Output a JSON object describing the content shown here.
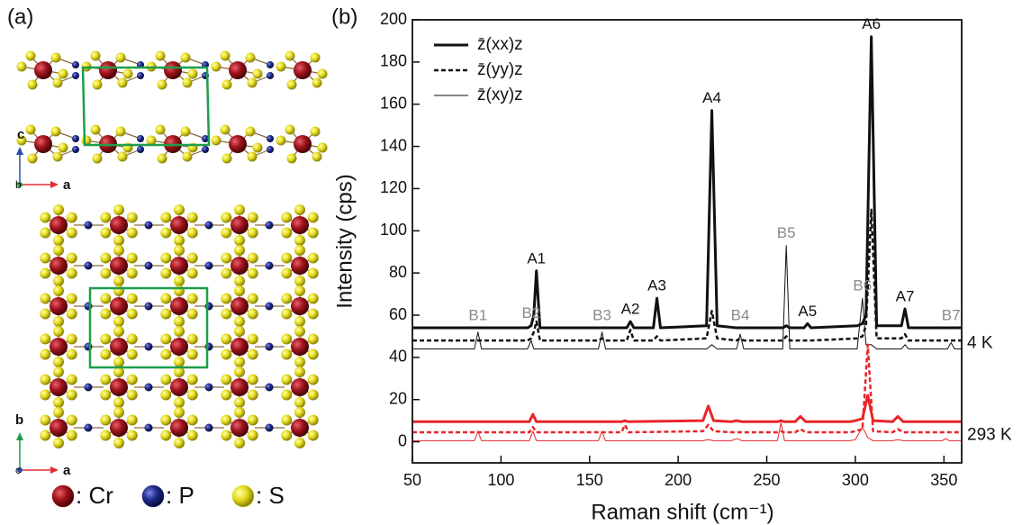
{
  "panel_a": {
    "label": "(a)",
    "side_axes": {
      "up": "c",
      "origin": "b",
      "right": "a"
    },
    "top_axes": {
      "up": "b",
      "origin": "c",
      "right": "a"
    },
    "legend": [
      {
        "text": ": Cr",
        "color": "#a0141c"
      },
      {
        "text": ": P",
        "color": "#1f2a8c"
      },
      {
        "text": ": S",
        "color": "#e6dc1e"
      }
    ]
  },
  "chart_data": {
    "type": "line",
    "panel_label": "(b)",
    "xlabel": "Raman shift (cm⁻¹)",
    "ylabel": "Intensity (cps)",
    "xlim": [
      50,
      360
    ],
    "xticks": [
      50,
      100,
      150,
      200,
      250,
      300,
      350
    ],
    "ylim": [
      -10,
      200
    ],
    "yticks": [
      0,
      20,
      40,
      60,
      80,
      100,
      120,
      140,
      160,
      180,
      200
    ],
    "grid": false,
    "legend": "upper left",
    "groups": [
      {
        "label": "4 K",
        "color": "#111111",
        "x": [
          50,
          85,
          87,
          89,
          115,
          117,
          118.5,
          120,
          122,
          155,
          157,
          159,
          171,
          173,
          175,
          186,
          188,
          190,
          216,
          219,
          222,
          233,
          235,
          237,
          259,
          261,
          263,
          271,
          273,
          275,
          301,
          304,
          306,
          309,
          312,
          326,
          328,
          330,
          352,
          354,
          356,
          360
        ],
        "series": [
          {
            "name": "z̄(xx)z",
            "style": "thick",
            "values": [
              54,
              54,
              54,
              54,
              54,
              55,
              60,
              81,
              54,
              54,
              54,
              54,
              54,
              57,
              54,
              54,
              68,
              54,
              55,
              157,
              55,
              54,
              54,
              54,
              54,
              55,
              54,
              54,
              56,
              54,
              55,
              56,
              60,
              192,
              55,
              55,
              63,
              54,
              54,
              54,
              54,
              54
            ]
          },
          {
            "name": "z̄(yy)z",
            "style": "dashed",
            "values": [
              48,
              48,
              48,
              48,
              48,
              49,
              52,
              57,
              48,
              48,
              49,
              48,
              48,
              53,
              48,
              48,
              50,
              48,
              49,
              62,
              49,
              48,
              49,
              48,
              48,
              50,
              48,
              48,
              48,
              48,
              49,
              50,
              55,
              110,
              49,
              49,
              51,
              48,
              48,
              48,
              48,
              48
            ]
          },
          {
            "name": "z̄(xy)z",
            "style": "thin",
            "values": [
              44,
              44,
              52,
              44,
              44,
              48,
              44,
              44,
              44,
              44,
              52,
              44,
              44,
              44,
              44,
              44,
              44,
              44,
              44,
              46,
              44,
              44,
              51,
              44,
              44,
              93,
              44,
              44,
              44,
              44,
              44,
              68,
              46,
              46,
              44,
              44,
              46,
              44,
              44,
              47,
              44,
              44
            ]
          }
        ]
      },
      {
        "label": "293 K",
        "color": "#e8262a",
        "x": [
          50,
          85,
          87,
          89,
          116,
          118,
          120,
          155,
          157,
          159,
          168,
          170,
          172,
          214,
          217,
          220,
          230,
          233,
          236,
          256,
          258,
          260,
          266,
          269,
          272,
          297,
          300,
          304,
          307,
          310,
          321,
          324,
          327,
          349,
          351,
          353,
          360
        ],
        "series": [
          {
            "style": "thick",
            "values": [
              9.5,
              9.5,
              9.5,
              9.5,
              9.5,
              13,
              9.5,
              9.5,
              9.5,
              9.5,
              9.5,
              10,
              9.5,
              10,
              17,
              10,
              9.5,
              10,
              9.5,
              9.5,
              10,
              9.5,
              9.5,
              12,
              9.5,
              9.5,
              10,
              11,
              22,
              10,
              9.5,
              12,
              9.5,
              9.5,
              9.5,
              9.5,
              9.5
            ]
          },
          {
            "style": "dashed",
            "values": [
              4.5,
              4.5,
              4.5,
              4.5,
              4.5,
              7,
              4.5,
              4.5,
              4.5,
              4.5,
              4.5,
              8,
              4.5,
              5,
              8,
              5,
              4.5,
              4.5,
              4.5,
              4.5,
              5,
              4.5,
              4.5,
              6,
              4.5,
              4.5,
              5,
              6,
              46,
              5,
              4.5,
              6,
              4.5,
              4.5,
              4.5,
              4.5,
              4.5
            ]
          },
          {
            "style": "thin",
            "values": [
              0.5,
              0.5,
              5,
              0.5,
              0.5,
              5,
              0.5,
              0.5,
              5,
              0.5,
              0.5,
              0.5,
              0.5,
              0.5,
              1,
              0.5,
              0.5,
              1.5,
              0.5,
              0.5,
              9,
              0.5,
              0.5,
              0.5,
              0.5,
              0.5,
              1,
              7,
              2,
              0.5,
              0.5,
              1,
              0.5,
              0.5,
              1.5,
              0.5,
              0.5
            ]
          }
        ]
      }
    ],
    "annotations": [
      {
        "text": "B1",
        "x": 87,
        "color": "#8a8a8a"
      },
      {
        "text": "B2",
        "x": 117,
        "color": "#8a8a8a"
      },
      {
        "text": "A1",
        "x": 120,
        "color": "#111111"
      },
      {
        "text": "B3",
        "x": 157,
        "color": "#8a8a8a"
      },
      {
        "text": "A2",
        "x": 173,
        "color": "#111111"
      },
      {
        "text": "A3",
        "x": 188,
        "color": "#111111"
      },
      {
        "text": "A4",
        "x": 219,
        "color": "#111111"
      },
      {
        "text": "B4",
        "x": 235,
        "color": "#8a8a8a"
      },
      {
        "text": "B5",
        "x": 261,
        "color": "#8a8a8a"
      },
      {
        "text": "A5",
        "x": 273,
        "color": "#111111"
      },
      {
        "text": "B6",
        "x": 304,
        "color": "#8a8a8a"
      },
      {
        "text": "A6",
        "x": 309,
        "color": "#111111"
      },
      {
        "text": "A7",
        "x": 328,
        "color": "#111111"
      },
      {
        "text": "B7",
        "x": 354,
        "color": "#8a8a8a"
      }
    ]
  }
}
